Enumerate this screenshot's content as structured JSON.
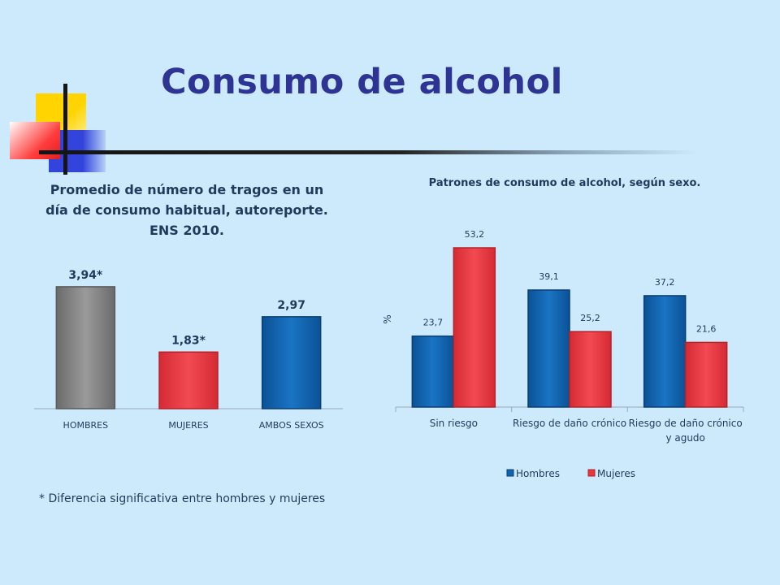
{
  "page": {
    "title": "Consumo de alcohol"
  },
  "footnote": "* Diferencia significativa entre hombres y mujeres",
  "colors": {
    "background": "#cdeafd",
    "title": "#2d3494",
    "grey_bar": "#7f7f7f",
    "red_bar": "#e8363f",
    "blue_bar": "#0f64b0"
  },
  "chart_data": [
    {
      "type": "bar",
      "title": "Promedio de número de tragos en un día de consumo habitual, autoreporte. ENS 2010.",
      "categories": [
        "HOMBRES",
        "MUJERES",
        "AMBOS SEXOS"
      ],
      "values": [
        3.94,
        1.83,
        2.97
      ],
      "data_labels": [
        "3,94*",
        "1,83*",
        "2,97"
      ],
      "bar_colors": [
        "#7f7f7f",
        "#e8363f",
        "#0f64b0"
      ],
      "ylim": [
        0,
        4.2
      ],
      "grid": false
    },
    {
      "type": "bar",
      "title": "Patrones de consumo de alcohol, según sexo.",
      "categories": [
        "Sin riesgo",
        "Riesgo de daño crónico",
        "Riesgo de daño crónico y agudo"
      ],
      "series": [
        {
          "name": "Hombres",
          "values": [
            23.7,
            39.1,
            37.2
          ],
          "labels": [
            "23,7",
            "39,1",
            "37,2"
          ],
          "color": "#0f64b0"
        },
        {
          "name": "Mujeres",
          "values": [
            53.2,
            25.2,
            21.6
          ],
          "labels": [
            "53,2",
            "25,2",
            "21,6"
          ],
          "color": "#e8363f"
        }
      ],
      "ylabel": "%",
      "ylim": [
        0,
        60
      ],
      "legend": "bottom",
      "grid": false
    }
  ]
}
